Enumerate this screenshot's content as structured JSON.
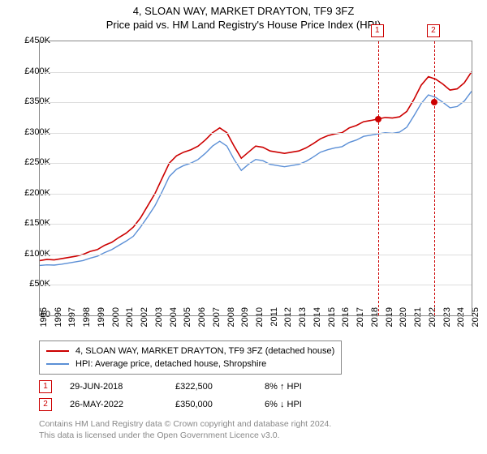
{
  "title": {
    "line1": "4, SLOAN WAY, MARKET DRAYTON, TF9 3FZ",
    "line2": "Price paid vs. HM Land Registry's House Price Index (HPI)"
  },
  "chart": {
    "type": "line",
    "ylim": [
      0,
      450000
    ],
    "ytick_step": 50000,
    "yticks": [
      "£0",
      "£50K",
      "£100K",
      "£150K",
      "£200K",
      "£250K",
      "£300K",
      "£350K",
      "£400K",
      "£450K"
    ],
    "xlim": [
      1995,
      2025
    ],
    "xticks": [
      "1995",
      "1996",
      "1997",
      "1998",
      "1999",
      "2000",
      "2001",
      "2002",
      "2003",
      "2004",
      "2005",
      "2006",
      "2007",
      "2008",
      "2009",
      "2010",
      "2011",
      "2012",
      "2013",
      "2014",
      "2015",
      "2016",
      "2017",
      "2018",
      "2019",
      "2020",
      "2021",
      "2022",
      "2023",
      "2024",
      "2025"
    ],
    "grid_color": "#dddddd",
    "background_color": "#ffffff",
    "series": [
      {
        "name": "property",
        "color": "#cc0000",
        "width": 1.6,
        "label": "4, SLOAN WAY, MARKET DRAYTON, TF9 3FZ (detached house)",
        "points": [
          [
            1995,
            90000
          ],
          [
            1995.5,
            92000
          ],
          [
            1996,
            91000
          ],
          [
            1996.5,
            93000
          ],
          [
            1997,
            95000
          ],
          [
            1997.5,
            97000
          ],
          [
            1998,
            100000
          ],
          [
            1998.5,
            105000
          ],
          [
            1999,
            108000
          ],
          [
            1999.5,
            115000
          ],
          [
            2000,
            120000
          ],
          [
            2000.5,
            128000
          ],
          [
            2001,
            135000
          ],
          [
            2001.5,
            145000
          ],
          [
            2002,
            160000
          ],
          [
            2002.5,
            180000
          ],
          [
            2003,
            200000
          ],
          [
            2003.5,
            225000
          ],
          [
            2004,
            250000
          ],
          [
            2004.5,
            262000
          ],
          [
            2005,
            268000
          ],
          [
            2005.5,
            272000
          ],
          [
            2006,
            278000
          ],
          [
            2006.5,
            288000
          ],
          [
            2007,
            300000
          ],
          [
            2007.5,
            308000
          ],
          [
            2008,
            300000
          ],
          [
            2008.5,
            278000
          ],
          [
            2009,
            258000
          ],
          [
            2009.5,
            268000
          ],
          [
            2010,
            278000
          ],
          [
            2010.5,
            276000
          ],
          [
            2011,
            270000
          ],
          [
            2011.5,
            268000
          ],
          [
            2012,
            266000
          ],
          [
            2012.5,
            268000
          ],
          [
            2013,
            270000
          ],
          [
            2013.5,
            275000
          ],
          [
            2014,
            282000
          ],
          [
            2014.5,
            290000
          ],
          [
            2015,
            295000
          ],
          [
            2015.5,
            298000
          ],
          [
            2016,
            300000
          ],
          [
            2016.5,
            308000
          ],
          [
            2017,
            312000
          ],
          [
            2017.5,
            318000
          ],
          [
            2018,
            320000
          ],
          [
            2018.5,
            322500
          ],
          [
            2019,
            325000
          ],
          [
            2019.5,
            324000
          ],
          [
            2020,
            326000
          ],
          [
            2020.5,
            335000
          ],
          [
            2021,
            355000
          ],
          [
            2021.5,
            378000
          ],
          [
            2022,
            392000
          ],
          [
            2022.5,
            388000
          ],
          [
            2023,
            380000
          ],
          [
            2023.5,
            370000
          ],
          [
            2024,
            372000
          ],
          [
            2024.5,
            382000
          ],
          [
            2025,
            400000
          ]
        ]
      },
      {
        "name": "hpi",
        "color": "#5b8fd6",
        "width": 1.4,
        "label": "HPI: Average price, detached house, Shropshire",
        "points": [
          [
            1995,
            82000
          ],
          [
            1995.5,
            83000
          ],
          [
            1996,
            82500
          ],
          [
            1996.5,
            84000
          ],
          [
            1997,
            86000
          ],
          [
            1997.5,
            88000
          ],
          [
            1998,
            90000
          ],
          [
            1998.5,
            94000
          ],
          [
            1999,
            97000
          ],
          [
            1999.5,
            103000
          ],
          [
            2000,
            108000
          ],
          [
            2000.5,
            115000
          ],
          [
            2001,
            122000
          ],
          [
            2001.5,
            130000
          ],
          [
            2002,
            145000
          ],
          [
            2002.5,
            162000
          ],
          [
            2003,
            180000
          ],
          [
            2003.5,
            203000
          ],
          [
            2004,
            228000
          ],
          [
            2004.5,
            240000
          ],
          [
            2005,
            246000
          ],
          [
            2005.5,
            250000
          ],
          [
            2006,
            256000
          ],
          [
            2006.5,
            266000
          ],
          [
            2007,
            278000
          ],
          [
            2007.5,
            286000
          ],
          [
            2008,
            278000
          ],
          [
            2008.5,
            256000
          ],
          [
            2009,
            238000
          ],
          [
            2009.5,
            248000
          ],
          [
            2010,
            256000
          ],
          [
            2010.5,
            254000
          ],
          [
            2011,
            248000
          ],
          [
            2011.5,
            246000
          ],
          [
            2012,
            244000
          ],
          [
            2012.5,
            246000
          ],
          [
            2013,
            248000
          ],
          [
            2013.5,
            253000
          ],
          [
            2014,
            260000
          ],
          [
            2014.5,
            268000
          ],
          [
            2015,
            272000
          ],
          [
            2015.5,
            275000
          ],
          [
            2016,
            277000
          ],
          [
            2016.5,
            284000
          ],
          [
            2017,
            288000
          ],
          [
            2017.5,
            294000
          ],
          [
            2018,
            296000
          ],
          [
            2018.5,
            298000
          ],
          [
            2019,
            300000
          ],
          [
            2019.5,
            299000
          ],
          [
            2020,
            301000
          ],
          [
            2020.5,
            309000
          ],
          [
            2021,
            328000
          ],
          [
            2021.5,
            348000
          ],
          [
            2022,
            362000
          ],
          [
            2022.5,
            358000
          ],
          [
            2023,
            350000
          ],
          [
            2023.5,
            341000
          ],
          [
            2024,
            343000
          ],
          [
            2024.5,
            352000
          ],
          [
            2025,
            368000
          ]
        ]
      }
    ],
    "markers": [
      {
        "n": "1",
        "x": 2018.5,
        "y": 322500,
        "dot_color": "#cc0000"
      },
      {
        "n": "2",
        "x": 2022.4,
        "y": 350000,
        "dot_color": "#cc0000"
      }
    ]
  },
  "legend": {
    "items": [
      {
        "color": "#cc0000",
        "label": "4, SLOAN WAY, MARKET DRAYTON, TF9 3FZ (detached house)"
      },
      {
        "color": "#5b8fd6",
        "label": "HPI: Average price, detached house, Shropshire"
      }
    ]
  },
  "annotations": [
    {
      "n": "1",
      "date": "29-JUN-2018",
      "price": "£322,500",
      "pct": "8% ↑ HPI"
    },
    {
      "n": "2",
      "date": "26-MAY-2022",
      "price": "£350,000",
      "pct": "6% ↓ HPI"
    }
  ],
  "footer": {
    "line1": "Contains HM Land Registry data © Crown copyright and database right 2024.",
    "line2": "This data is licensed under the Open Government Licence v3.0."
  }
}
